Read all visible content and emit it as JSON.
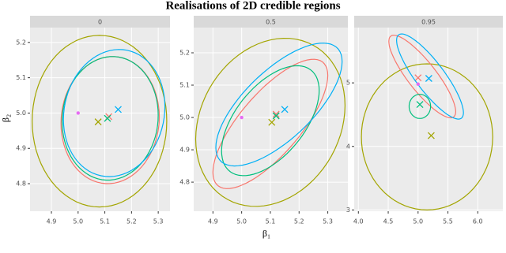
{
  "title": "Realisations of 2D credible regions",
  "x_label": "β₁",
  "y_label": "β₂",
  "chart_data": [
    {
      "type": "scatter",
      "strip": "0",
      "grid": true,
      "xlim": [
        4.82,
        5.344
      ],
      "xticks": [
        4.9,
        {
          "value": 5,
          "label": "5.0"
        },
        5.1,
        5.2,
        5.3
      ],
      "ylim": [
        4.722,
        5.242
      ],
      "yticks": [
        4.8,
        4.9,
        {
          "value": 5,
          "label": "5.0"
        },
        5.1,
        5.2
      ],
      "series": [
        {
          "color": "#A3A500",
          "marker": "x",
          "x": [
            5.075
          ],
          "y": [
            4.975
          ],
          "ellipse": {
            "cx": 5.08,
            "cy": 4.977,
            "sx": 0.252,
            "sy": 0.243,
            "rho": 0
          }
        },
        {
          "color": "#F8766D",
          "marker": "x",
          "x": [
            5.115
          ],
          "y": [
            4.99
          ],
          "ellipse": {
            "cx": 5.12,
            "cy": 4.98,
            "sx": 0.184,
            "sy": 0.18,
            "rho": 0.05
          }
        },
        {
          "color": "#00BF7D",
          "marker": "x",
          "x": [
            5.11
          ],
          "y": [
            4.985
          ],
          "ellipse": {
            "cx": 5.12,
            "cy": 4.985,
            "sx": 0.18,
            "sy": 0.175,
            "rho": 0.05
          }
        },
        {
          "color": "#00B0F6",
          "marker": "x",
          "x": [
            5.15
          ],
          "y": [
            5.01
          ],
          "ellipse": {
            "cx": 5.135,
            "cy": 5.0,
            "sx": 0.19,
            "sy": 0.18,
            "rho": 0.1
          }
        },
        {
          "color": "#E76BF3",
          "marker": "dot",
          "x": [
            5.0
          ],
          "y": [
            5.0
          ]
        }
      ]
    },
    {
      "type": "scatter",
      "strip": "0.5",
      "grid": true,
      "xlim": [
        4.833,
        5.37
      ],
      "xticks": [
        4.9,
        {
          "value": 5,
          "label": "5.0"
        },
        5.1,
        5.2,
        5.3
      ],
      "ylim": [
        4.71,
        5.278
      ],
      "yticks": [
        4.8,
        4.9,
        {
          "value": 5,
          "label": "5.0"
        },
        5.1,
        5.2
      ],
      "series": [
        {
          "color": "#A3A500",
          "marker": "x",
          "x": [
            5.105
          ],
          "y": [
            4.985
          ],
          "ellipse": {
            "cx": 5.1,
            "cy": 4.985,
            "sx": 0.26,
            "sy": 0.26,
            "rho": 0.2
          }
        },
        {
          "color": "#F8766D",
          "marker": "x",
          "x": [
            5.12
          ],
          "y": [
            5.01
          ],
          "ellipse": {
            "cx": 5.1,
            "cy": 4.98,
            "sx": 0.2,
            "sy": 0.2,
            "rho": 0.75
          }
        },
        {
          "color": "#00BF7D",
          "marker": "x",
          "x": [
            5.12
          ],
          "y": [
            5.005
          ],
          "ellipse": {
            "cx": 5.1,
            "cy": 4.99,
            "sx": 0.17,
            "sy": 0.17,
            "rho": 0.55
          }
        },
        {
          "color": "#00B0F6",
          "marker": "x",
          "x": [
            5.15
          ],
          "y": [
            5.025
          ],
          "ellipse": {
            "cx": 5.13,
            "cy": 5.04,
            "sx": 0.22,
            "sy": 0.19,
            "rho": 0.7
          }
        },
        {
          "color": "#E76BF3",
          "marker": "dot",
          "x": [
            5.0
          ],
          "y": [
            5.0
          ]
        }
      ]
    },
    {
      "type": "scatter",
      "strip": "0.95",
      "grid": true,
      "xlim": [
        3.93,
        6.42
      ],
      "xticks": [
        {
          "value": 4,
          "label": "4.0"
        },
        4.5,
        {
          "value": 5,
          "label": "5.0"
        },
        5.5,
        {
          "value": 6,
          "label": "6.0"
        }
      ],
      "ylim": [
        2.98,
        5.87
      ],
      "yticks": [
        3,
        4,
        5
      ],
      "series": [
        {
          "color": "#A3A500",
          "marker": "x",
          "x": [
            5.22
          ],
          "y": [
            4.17
          ],
          "ellipse": {
            "cx": 5.15,
            "cy": 4.15,
            "sx": 1.1,
            "sy": 1.15,
            "rho": 0
          }
        },
        {
          "color": "#F8766D",
          "marker": "x",
          "x": [
            5.0
          ],
          "y": [
            5.08
          ],
          "ellipse": {
            "cx": 5.07,
            "cy": 5.1,
            "sx": 0.56,
            "sy": 0.65,
            "rho": -0.85
          }
        },
        {
          "color": "#00BF7D",
          "marker": "x",
          "x": [
            5.03
          ],
          "y": [
            4.66
          ],
          "ellipse": {
            "cx": 5.03,
            "cy": 4.63,
            "sx": 0.18,
            "sy": 0.19,
            "rho": 0
          }
        },
        {
          "color": "#00B0F6",
          "marker": "x",
          "x": [
            5.18
          ],
          "y": [
            5.07
          ],
          "ellipse": {
            "cx": 5.2,
            "cy": 5.1,
            "sx": 0.56,
            "sy": 0.67,
            "rho": -0.85
          }
        },
        {
          "color": "#E76BF3",
          "marker": "dot",
          "x": [
            5.0
          ],
          "y": [
            4.98
          ]
        }
      ]
    }
  ]
}
